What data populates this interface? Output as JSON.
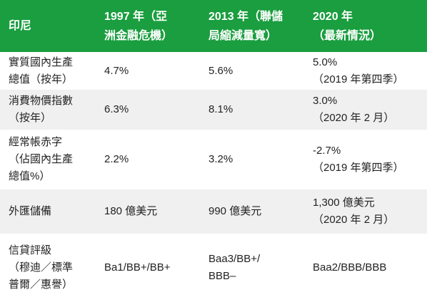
{
  "header": {
    "col0": [
      "印尼"
    ],
    "col1": [
      "1997 年（亞",
      "洲金融危機）"
    ],
    "col2": [
      "2013 年（聯儲",
      "局縮減量寬）"
    ],
    "col3": [
      "2020 年",
      "（最新情況）"
    ]
  },
  "rows": [
    {
      "label": [
        "實質國內生產",
        "總值（按年）"
      ],
      "v1997": [
        "4.7%"
      ],
      "v2013": [
        "5.6%"
      ],
      "v2020": [
        "5.0%",
        "（2019 年第四季）"
      ]
    },
    {
      "label": [
        "消費物價指數",
        "（按年）"
      ],
      "v1997": [
        "6.3%"
      ],
      "v2013": [
        "8.1%"
      ],
      "v2020": [
        "3.0%",
        "（2020 年 2 月）"
      ]
    },
    {
      "label": [
        "經常帳赤字",
        "（佔國內生產",
        "總值%）"
      ],
      "v1997": [
        "2.2%"
      ],
      "v2013": [
        "3.2%"
      ],
      "v2020": [
        "-2.7%",
        "（2019 年第四季）"
      ]
    },
    {
      "label": [
        "外匯儲備"
      ],
      "v1997": [
        "180 億美元"
      ],
      "v2013": [
        "990 億美元"
      ],
      "v2020": [
        "1,300 億美元",
        "（2020 年 2 月）"
      ]
    },
    {
      "label": [
        "信貸評級",
        "（穆迪／標準",
        "普爾／惠譽）"
      ],
      "v1997": [
        "Ba1/BB+/BB+"
      ],
      "v2013": [
        "Baa3/BB+/",
        "BBB–"
      ],
      "v2020": [
        "Baa2/BBB/BBB"
      ]
    }
  ],
  "colors": {
    "header_bg": "#1a9e3f",
    "alt_row_bg": "#f0f0f0"
  }
}
